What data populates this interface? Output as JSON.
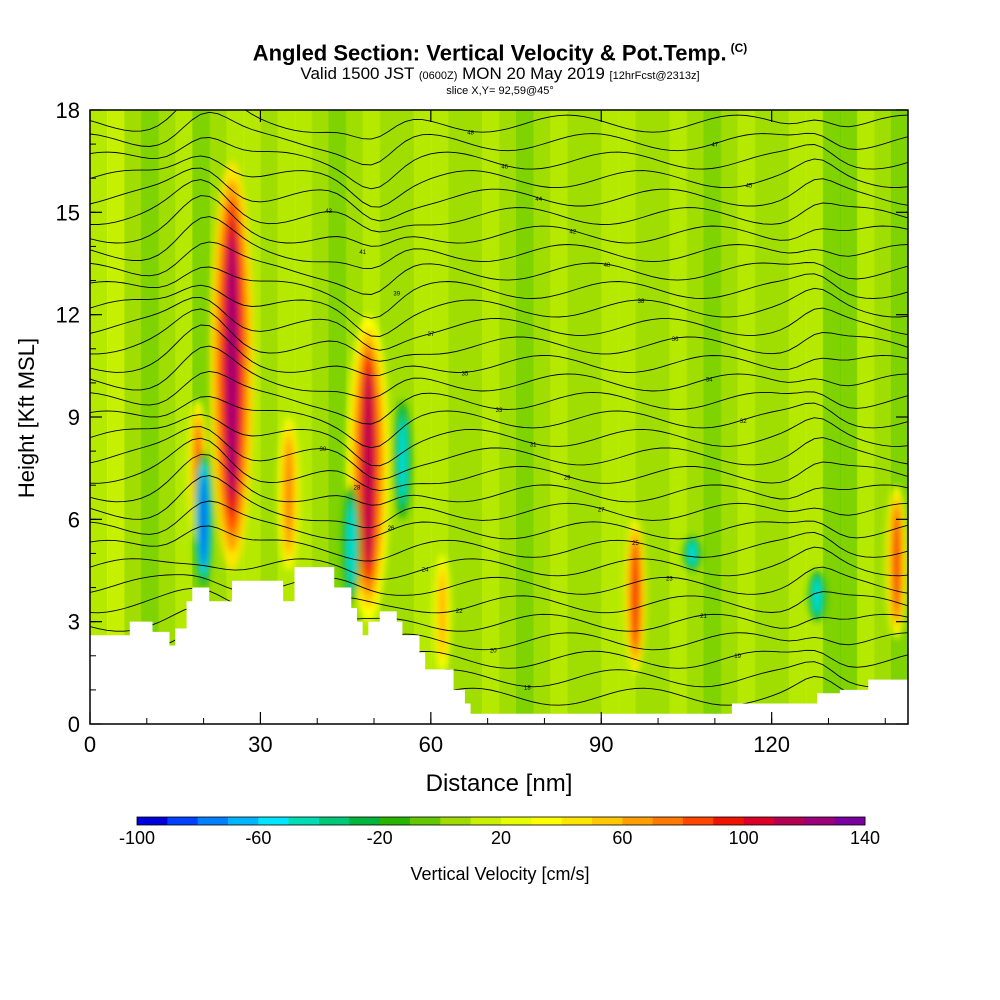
{
  "header": {
    "title": "Angled Section: Vertical Velocity & Pot.Temp.",
    "title_suffix": "(C)",
    "valid_prefix": "Valid 1500 JST",
    "valid_utc": "(0600Z)",
    "valid_date": "MON 20 May 2019",
    "forecast": "[12hrFcst@2313z]",
    "slice": "slice X,Y= 92,59@45°"
  },
  "chart_data": {
    "type": "heatmap",
    "xlabel": "Distance [nm]",
    "ylabel": "Height [Kft MSL]",
    "xlim": [
      0,
      144
    ],
    "ylim": [
      0,
      18
    ],
    "x_ticks": [
      "0",
      "30",
      "60",
      "90",
      "120"
    ],
    "y_ticks": [
      "0",
      "3",
      "6",
      "9",
      "12",
      "15",
      "18"
    ],
    "colorbar": {
      "label": "Vertical Velocity [cm/s]",
      "range": [
        -100,
        140
      ],
      "tick_labels": [
        "-100",
        "-60",
        "-20",
        "20",
        "60",
        "100",
        "140"
      ],
      "colors": [
        "#0000dc",
        "#0040ff",
        "#0080ff",
        "#00b4ff",
        "#00e6ff",
        "#00dcb4",
        "#00c878",
        "#00b43c",
        "#28b400",
        "#64c800",
        "#a0dc00",
        "#c8f000",
        "#e6ff00",
        "#ffff00",
        "#ffe600",
        "#ffc800",
        "#ffa000",
        "#ff7800",
        "#ff4600",
        "#f01400",
        "#dc0028",
        "#b40050",
        "#9b0078",
        "#7800a0"
      ]
    },
    "updrafts": [
      {
        "x": 19,
        "z_bottom": 5.2,
        "z_top": 9.5,
        "w_max": 85
      },
      {
        "x": 25,
        "z_bottom": 4.5,
        "z_top": 16.5,
        "w_max": 120
      },
      {
        "x": 35,
        "z_bottom": 4.5,
        "z_top": 9.0,
        "w_max": 70
      },
      {
        "x": 49,
        "z_bottom": 3.0,
        "z_top": 12.0,
        "w_max": 110
      },
      {
        "x": 62,
        "z_bottom": 1.5,
        "z_top": 5.0,
        "w_max": 65
      },
      {
        "x": 96,
        "z_bottom": 1.5,
        "z_top": 6.0,
        "w_max": 95
      },
      {
        "x": 142,
        "z_bottom": 2.5,
        "z_top": 7.0,
        "w_max": 90
      }
    ],
    "downdrafts": [
      {
        "x": 20,
        "z_bottom": 4.0,
        "z_top": 8.0,
        "w_min": -100
      },
      {
        "x": 46,
        "z_bottom": 3.5,
        "z_top": 7.0,
        "w_min": -60
      },
      {
        "x": 55,
        "z_bottom": 6.0,
        "z_top": 9.5,
        "w_min": -60
      },
      {
        "x": 106,
        "z_bottom": 4.5,
        "z_top": 5.5,
        "w_min": -60
      },
      {
        "x": 128,
        "z_bottom": 3.0,
        "z_top": 4.5,
        "w_min": -60
      }
    ],
    "pot_temp_contours": {
      "interval_C": 1,
      "labels": [
        "17",
        "18",
        "19",
        "20",
        "21",
        "22",
        "23",
        "24",
        "25",
        "26",
        "27",
        "28",
        "29",
        "30",
        "31",
        "32",
        "33",
        "34",
        "35",
        "36",
        "37",
        "38",
        "39",
        "40",
        "41",
        "42",
        "43",
        "44",
        "45",
        "46",
        "47",
        "48"
      ]
    },
    "terrain_kft": [
      [
        0,
        2.6
      ],
      [
        6,
        2.6
      ],
      [
        7,
        3.0
      ],
      [
        10,
        3.0
      ],
      [
        11,
        2.7
      ],
      [
        13,
        2.7
      ],
      [
        14,
        2.3
      ],
      [
        15,
        2.8
      ],
      [
        17,
        3.6
      ],
      [
        18,
        4.0
      ],
      [
        20,
        4.0
      ],
      [
        21,
        3.6
      ],
      [
        24,
        3.6
      ],
      [
        25,
        4.2
      ],
      [
        32,
        4.2
      ],
      [
        34,
        3.6
      ],
      [
        36,
        4.6
      ],
      [
        41,
        4.6
      ],
      [
        43,
        4.0
      ],
      [
        46,
        3.4
      ],
      [
        47,
        3.0
      ],
      [
        48,
        2.6
      ],
      [
        49,
        3.0
      ],
      [
        51,
        3.3
      ],
      [
        54,
        3.0
      ],
      [
        55,
        2.6
      ],
      [
        58,
        2.1
      ],
      [
        59,
        1.6
      ],
      [
        63,
        1.6
      ],
      [
        64,
        1.0
      ],
      [
        66,
        0.6
      ],
      [
        67,
        0.3
      ],
      [
        110,
        0.3
      ],
      [
        113,
        0.6
      ],
      [
        120,
        0.6
      ],
      [
        128,
        0.9
      ],
      [
        132,
        1.0
      ],
      [
        137,
        1.3
      ],
      [
        144,
        1.3
      ]
    ]
  }
}
